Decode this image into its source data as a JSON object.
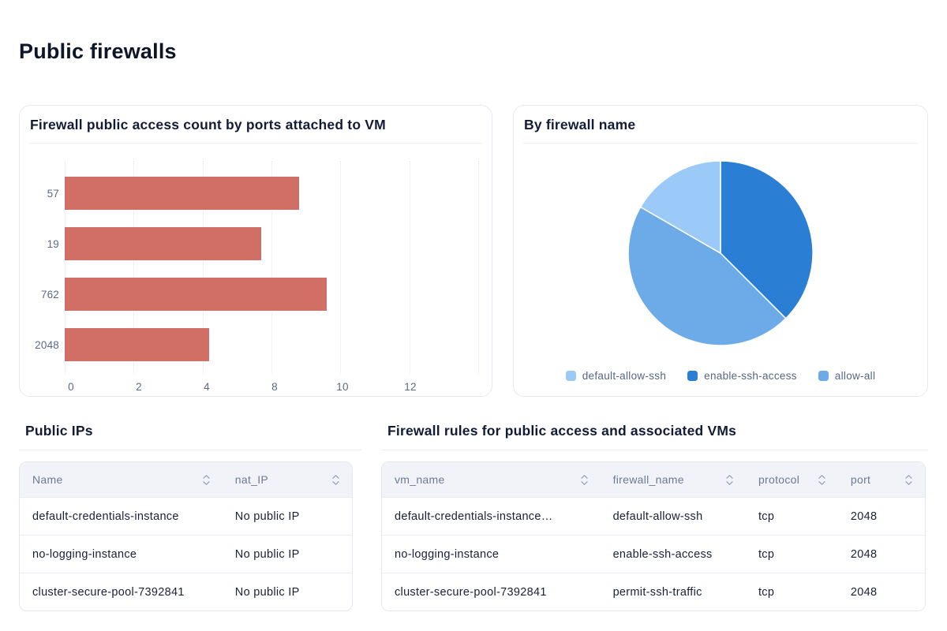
{
  "page": {
    "title": "Public firewalls"
  },
  "cards": {
    "bar_card": {
      "title": "Firewall public access count by ports attached to VM"
    },
    "pie_card": {
      "title": "By firewall name"
    }
  },
  "chart_data": [
    {
      "type": "bar",
      "orientation": "horizontal",
      "title": "Firewall public access count by ports attached to VM",
      "categories": [
        "57",
        "19",
        "762",
        "2048"
      ],
      "values": [
        8.8,
        7.4,
        9.6,
        4.4
      ],
      "xticks": [
        0,
        2,
        4,
        8,
        10,
        12
      ],
      "xticklabels": [
        "0",
        "2",
        "4",
        "8",
        "10",
        "12"
      ],
      "x_total_intervals": 6,
      "grid": true,
      "bar_color": "#d16e66",
      "xlabel": "",
      "ylabel": ""
    },
    {
      "type": "pie",
      "title": "By firewall name",
      "slices": [
        {
          "label": "enable-ssh-access",
          "value": 9,
          "color": "#2a7fd4"
        },
        {
          "label": "allow-all",
          "value": 11,
          "color": "#6caae8"
        },
        {
          "label": "default-allow-ssh",
          "value": 4,
          "color": "#9ccaf8"
        }
      ],
      "start_angle_deg": 0,
      "legend_position": "bottom",
      "legend": [
        {
          "label": "default-allow-ssh",
          "color": "#9ccaf8"
        },
        {
          "label": "enable-ssh-access",
          "color": "#2a7fd4"
        },
        {
          "label": "allow-all",
          "color": "#6caae8"
        }
      ]
    }
  ],
  "sections": {
    "public_ips": {
      "title": "Public IPs",
      "table": {
        "columns": [
          "Name",
          "nat_IP"
        ],
        "column_widths": [
          "61%",
          "39%"
        ],
        "rows": [
          [
            "default-credentials-instance",
            "No public IP"
          ],
          [
            "no-logging-instance",
            "No public IP"
          ],
          [
            "cluster-secure-pool-7392841",
            "No public IP"
          ]
        ]
      }
    },
    "firewall_rules": {
      "title": "Firewall rules for public access and associated VMs",
      "table": {
        "columns": [
          "vm_name",
          "firewall_name",
          "protocol",
          "port"
        ],
        "column_widths": [
          "40.2%",
          "26.8%",
          "17%",
          "16%"
        ],
        "rows": [
          [
            "default-credentials-instance…",
            "default-allow-ssh",
            "tcp",
            "2048"
          ],
          [
            "no-logging-instance",
            "enable-ssh-access",
            "tcp",
            "2048"
          ],
          [
            "cluster-secure-pool-7392841",
            "permit-ssh-traffic",
            "tcp",
            "2048"
          ]
        ]
      }
    }
  },
  "icons": {
    "sort": "chevron-up-down",
    "sort_color": "#97a0b5"
  },
  "colors": {
    "bar": "#d16e66",
    "pie_dark_blue": "#2a7fd4",
    "pie_medium_blue": "#6caae8",
    "pie_light_blue": "#9ccaf8",
    "card_border": "#e7eaf3",
    "table_header_bg": "#f1f3f9",
    "text_dark": "#131c36",
    "text_muted": "#5d6a85"
  }
}
